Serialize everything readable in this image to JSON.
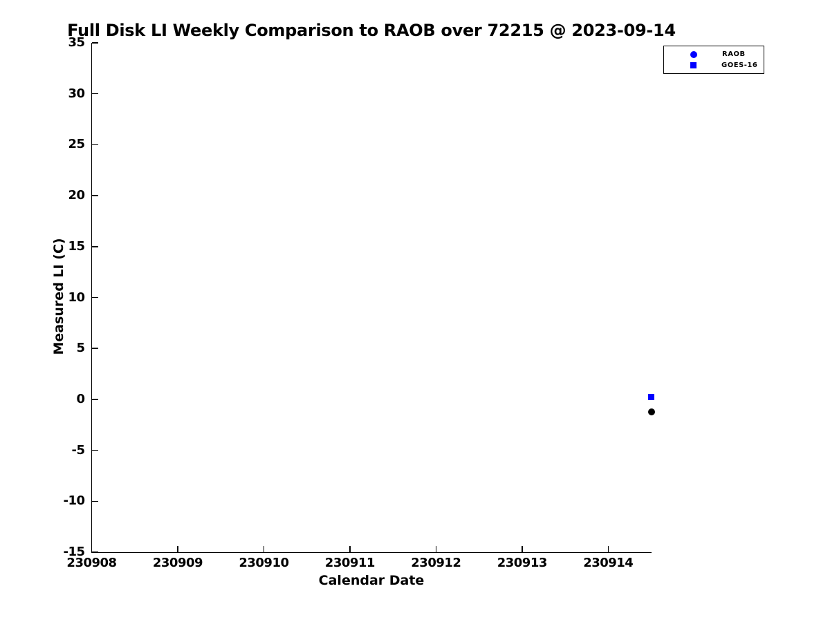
{
  "chart_data": {
    "type": "scatter",
    "title": "Full Disk LI Weekly Comparison to RAOB over 72215 @ 2023-09-14",
    "xlabel": "Calendar Date",
    "ylabel": "Measured LI (C)",
    "xlim": [
      230908,
      230914.5
    ],
    "ylim": [
      -15,
      35
    ],
    "xticks": [
      "230908",
      "230909",
      "230910",
      "230911",
      "230912",
      "230913",
      "230914"
    ],
    "yticks": [
      "35",
      "30",
      "25",
      "20",
      "15",
      "10",
      "5",
      "0",
      "-5",
      "-10",
      "-15"
    ],
    "grid": false,
    "background": "#ffffff",
    "axis_color": "#000000",
    "legend": {
      "position": "top-right-outside",
      "entries": [
        {
          "label": "RAOB",
          "marker": "circle",
          "color": "#0000ff"
        },
        {
          "label": "GOES-16",
          "marker": "square",
          "color": "#0000ff"
        }
      ]
    },
    "series": [
      {
        "name": "RAOB",
        "marker": "circle",
        "marker_color": "#000000",
        "marker_size": 10,
        "points": [
          {
            "x": 230914.5,
            "y": -1.25
          }
        ]
      },
      {
        "name": "GOES-16",
        "marker": "square",
        "marker_color": "#0000ff",
        "marker_size": 9,
        "points": [
          {
            "x": 230914.5,
            "y": 0.25
          }
        ]
      }
    ]
  }
}
